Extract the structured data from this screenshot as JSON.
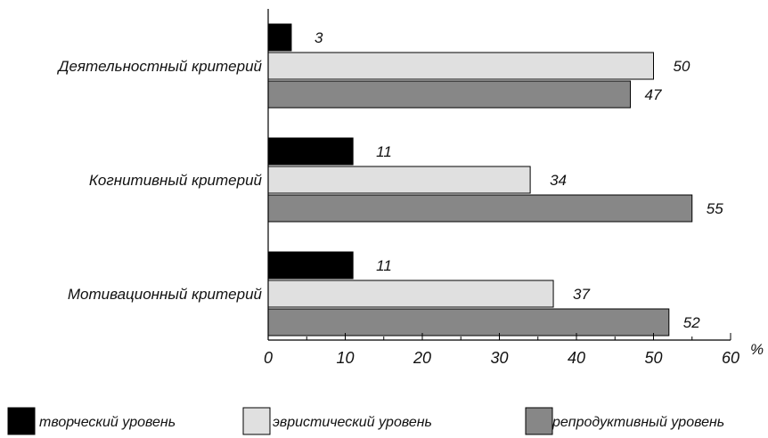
{
  "chart_data": {
    "type": "bar",
    "orientation": "horizontal",
    "categories": [
      "Деятельностный критерий",
      "Когнитивный критерий",
      "Мотивационный критерий"
    ],
    "series": [
      {
        "name": "творческий уровень",
        "values": [
          3,
          11,
          11
        ],
        "color": "#000000"
      },
      {
        "name": "эвристический уровень",
        "values": [
          50,
          34,
          37
        ],
        "color": "#e0e0e0"
      },
      {
        "name": "репродуктивный уровень",
        "values": [
          47,
          55,
          52
        ],
        "color": "#878787"
      }
    ],
    "xlim": [
      0,
      60
    ],
    "xticks": [
      0,
      10,
      20,
      30,
      40,
      50,
      60
    ],
    "xlabel": "%",
    "data_labels": true,
    "grid": false,
    "legend_position": "bottom"
  }
}
